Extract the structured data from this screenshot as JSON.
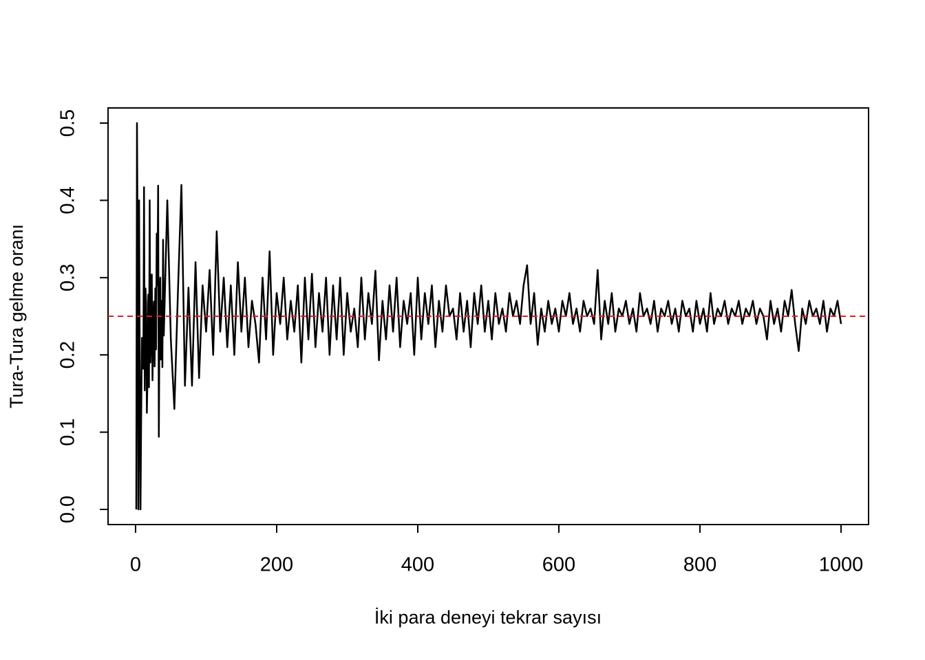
{
  "chart_data": {
    "type": "line",
    "x_label": "İki para deneyi tekrar sayısı",
    "y_label": "Tura-Tura gelme oranı",
    "color": "#000000",
    "reference_line": {
      "value": 0.25,
      "color": "#e41a1c"
    },
    "xlim": [
      -39,
      1039
    ],
    "ylim": [
      -0.0196,
      0.5196
    ],
    "xticks": [
      0,
      200,
      400,
      600,
      800,
      1000
    ],
    "yticks": [
      {
        "value": 0,
        "label": "0.0"
      },
      0.1,
      0.2,
      0.3,
      0.4,
      0.5
    ],
    "x": [
      1,
      2,
      3,
      4,
      5,
      6,
      7,
      8,
      9,
      10,
      11,
      12,
      13,
      14,
      15,
      16,
      17,
      18,
      19,
      20,
      21,
      22,
      23,
      24,
      25,
      26,
      27,
      28,
      29,
      30,
      31,
      32,
      33,
      34,
      35,
      36,
      37,
      38,
      39,
      40,
      45,
      50,
      55,
      60,
      65,
      70,
      75,
      80,
      85,
      90,
      95,
      100,
      105,
      110,
      115,
      120,
      125,
      130,
      135,
      140,
      145,
      150,
      155,
      160,
      165,
      170,
      175,
      180,
      185,
      190,
      195,
      200,
      205,
      210,
      215,
      220,
      225,
      230,
      235,
      240,
      245,
      250,
      255,
      260,
      265,
      270,
      275,
      280,
      285,
      290,
      295,
      300,
      305,
      310,
      315,
      320,
      325,
      330,
      335,
      340,
      345,
      350,
      355,
      360,
      365,
      370,
      375,
      380,
      385,
      390,
      395,
      400,
      405,
      410,
      415,
      420,
      425,
      430,
      435,
      440,
      445,
      450,
      455,
      460,
      465,
      470,
      475,
      480,
      485,
      490,
      495,
      500,
      505,
      510,
      515,
      520,
      525,
      530,
      535,
      540,
      545,
      550,
      555,
      560,
      565,
      570,
      575,
      580,
      585,
      590,
      595,
      600,
      605,
      610,
      615,
      620,
      625,
      630,
      635,
      640,
      645,
      650,
      655,
      660,
      665,
      670,
      675,
      680,
      685,
      690,
      695,
      700,
      705,
      710,
      715,
      720,
      725,
      730,
      735,
      740,
      745,
      750,
      755,
      760,
      765,
      770,
      775,
      780,
      785,
      790,
      795,
      800,
      805,
      810,
      815,
      820,
      825,
      830,
      835,
      840,
      845,
      850,
      855,
      860,
      865,
      870,
      875,
      880,
      885,
      890,
      895,
      900,
      905,
      910,
      915,
      920,
      925,
      930,
      935,
      940,
      945,
      950,
      955,
      960,
      965,
      970,
      975,
      980,
      985,
      990,
      995,
      1000
    ],
    "values": [
      0,
      0.5,
      0.333,
      0,
      0.4,
      0.167,
      0,
      0.125,
      0.222,
      0.2,
      0.182,
      0.417,
      0.154,
      0.286,
      0.267,
      0.125,
      0.176,
      0.278,
      0.158,
      0.4,
      0.19,
      0.227,
      0.304,
      0.167,
      0.24,
      0.269,
      0.185,
      0.286,
      0.207,
      0.357,
      0.29,
      0.419,
      0.094,
      0.265,
      0.3,
      0.194,
      0.27,
      0.184,
      0.349,
      0.225,
      0.4,
      0.22,
      0.13,
      0.28,
      0.42,
      0.16,
      0.287,
      0.16,
      0.32,
      0.17,
      0.29,
      0.23,
      0.31,
      0.2,
      0.36,
      0.23,
      0.3,
      0.21,
      0.29,
      0.2,
      0.32,
      0.23,
      0.3,
      0.21,
      0.27,
      0.24,
      0.19,
      0.3,
      0.22,
      0.334,
      0.2,
      0.28,
      0.24,
      0.3,
      0.22,
      0.27,
      0.23,
      0.29,
      0.19,
      0.3,
      0.22,
      0.305,
      0.21,
      0.28,
      0.23,
      0.3,
      0.2,
      0.29,
      0.22,
      0.3,
      0.2,
      0.28,
      0.23,
      0.26,
      0.21,
      0.3,
      0.22,
      0.28,
      0.24,
      0.309,
      0.193,
      0.27,
      0.22,
      0.29,
      0.23,
      0.3,
      0.21,
      0.27,
      0.24,
      0.28,
      0.2,
      0.3,
      0.22,
      0.28,
      0.24,
      0.29,
      0.21,
      0.27,
      0.23,
      0.29,
      0.25,
      0.26,
      0.22,
      0.28,
      0.23,
      0.27,
      0.21,
      0.28,
      0.24,
      0.29,
      0.23,
      0.27,
      0.22,
      0.28,
      0.24,
      0.26,
      0.23,
      0.28,
      0.25,
      0.27,
      0.24,
      0.29,
      0.316,
      0.24,
      0.28,
      0.213,
      0.26,
      0.23,
      0.27,
      0.24,
      0.26,
      0.23,
      0.27,
      0.25,
      0.28,
      0.24,
      0.26,
      0.23,
      0.27,
      0.25,
      0.26,
      0.24,
      0.31,
      0.22,
      0.27,
      0.24,
      0.28,
      0.23,
      0.26,
      0.25,
      0.27,
      0.24,
      0.26,
      0.23,
      0.28,
      0.25,
      0.26,
      0.24,
      0.27,
      0.23,
      0.26,
      0.25,
      0.27,
      0.24,
      0.26,
      0.23,
      0.27,
      0.25,
      0.26,
      0.23,
      0.27,
      0.24,
      0.26,
      0.23,
      0.28,
      0.24,
      0.26,
      0.25,
      0.27,
      0.24,
      0.26,
      0.25,
      0.27,
      0.24,
      0.26,
      0.25,
      0.27,
      0.24,
      0.26,
      0.25,
      0.22,
      0.27,
      0.24,
      0.26,
      0.23,
      0.27,
      0.25,
      0.284,
      0.24,
      0.205,
      0.26,
      0.24,
      0.27,
      0.25,
      0.26,
      0.24,
      0.27,
      0.23,
      0.26,
      0.25,
      0.27,
      0.24
    ]
  }
}
